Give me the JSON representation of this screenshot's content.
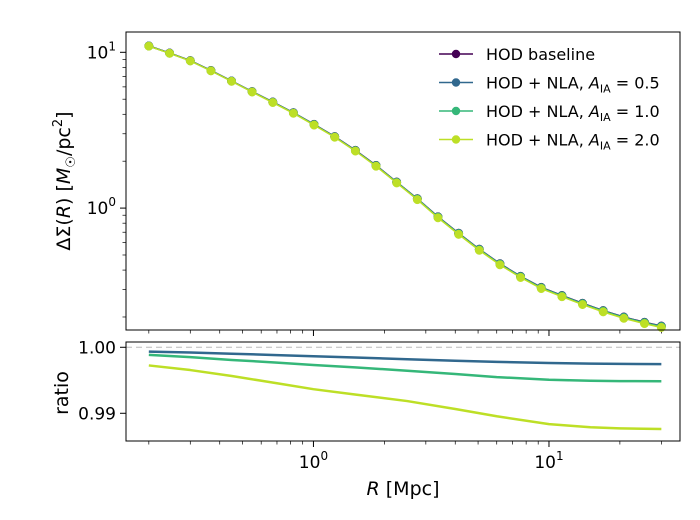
{
  "chart_data": [
    {
      "type": "line",
      "panel": "top",
      "xscale": "log",
      "yscale": "log",
      "xlim": [
        0.16,
        36
      ],
      "ylim": [
        0.165,
        13.5
      ],
      "xlabel": "",
      "ylabel": "ΔΣ(R) [M☉/pc²]",
      "yticks": [
        {
          "value": 1,
          "base": "10",
          "exp": "0"
        },
        {
          "value": 10,
          "base": "10",
          "exp": "1"
        }
      ],
      "legend_placement": "top-right",
      "x": [
        0.2,
        0.245,
        0.3,
        0.367,
        0.449,
        0.549,
        0.672,
        0.822,
        1.006,
        1.231,
        1.507,
        1.844,
        2.256,
        2.761,
        3.379,
        4.135,
        5.06,
        6.192,
        7.577,
        9.272,
        11.35,
        13.88,
        16.99,
        20.79,
        25.44,
        30.0
      ],
      "series": [
        {
          "name": "HOD baseline",
          "legend_main": "HOD baseline",
          "legend_sub": "",
          "legend_value": "",
          "color": "#440154",
          "marker": true,
          "values": [
            11.0,
            9.9,
            8.85,
            7.65,
            6.55,
            5.6,
            4.8,
            4.1,
            3.45,
            2.88,
            2.35,
            1.88,
            1.47,
            1.15,
            0.88,
            0.69,
            0.545,
            0.44,
            0.365,
            0.31,
            0.275,
            0.245,
            0.22,
            0.2,
            0.185,
            0.175
          ]
        },
        {
          "name": "HOD + NLA, A_IA = 0.5",
          "legend_main": "HOD + NLA, A",
          "legend_sub": "IA",
          "legend_value": " = 0.5",
          "color": "#31688e",
          "marker": true,
          "values": [
            10.98,
            9.88,
            8.84,
            7.64,
            6.54,
            5.59,
            4.79,
            4.09,
            3.44,
            2.872,
            2.343,
            1.875,
            1.466,
            1.147,
            0.878,
            0.688,
            0.5435,
            0.4388,
            0.364,
            0.3091,
            0.2742,
            0.2443,
            0.2194,
            0.1994,
            0.1844,
            0.1744
          ]
        },
        {
          "name": "HOD + NLA, A_IA = 1.0",
          "legend_main": "HOD + NLA, A",
          "legend_sub": "IA",
          "legend_value": " = 1.0",
          "color": "#35b779",
          "marker": true,
          "values": [
            10.97,
            9.87,
            8.82,
            7.62,
            6.53,
            5.58,
            4.78,
            4.08,
            3.43,
            2.864,
            2.336,
            1.868,
            1.461,
            1.143,
            0.874,
            0.685,
            0.541,
            0.4367,
            0.3622,
            0.3076,
            0.2728,
            0.243,
            0.2182,
            0.1983,
            0.1835,
            0.1734
          ]
        },
        {
          "name": "HOD + NLA, A_IA = 2.0",
          "legend_main": "HOD + NLA, A",
          "legend_sub": "IA",
          "legend_value": " = 2.0",
          "color": "#bddf26",
          "marker": true,
          "values": [
            10.95,
            9.85,
            8.8,
            7.6,
            6.51,
            5.56,
            4.76,
            4.06,
            3.41,
            2.85,
            2.323,
            1.856,
            1.45,
            1.133,
            0.866,
            0.678,
            0.5355,
            0.4322,
            0.3584,
            0.3043,
            0.2698,
            0.2403,
            0.2157,
            0.196,
            0.1813,
            0.1713
          ]
        }
      ]
    },
    {
      "type": "line",
      "panel": "bottom",
      "xscale": "log",
      "yscale": "linear",
      "xlim": [
        0.16,
        36
      ],
      "ylim": [
        0.9858,
        1.0008
      ],
      "xlabel": "R [Mpc]",
      "xlabel_var": "R",
      "xlabel_unit": " [Mpc]",
      "ylabel": "ratio",
      "xticks": [
        {
          "value": 1,
          "base": "10",
          "exp": "0"
        },
        {
          "value": 10,
          "base": "10",
          "exp": "1"
        }
      ],
      "yticks": [
        {
          "value": 1.0,
          "label": "1.00"
        },
        {
          "value": 0.99,
          "label": "0.99"
        }
      ],
      "reference_line": {
        "y": 1.0,
        "style": "dashed",
        "color": "#bbbbbb"
      },
      "x": [
        0.2,
        0.3,
        0.45,
        0.7,
        1.0,
        1.5,
        2.5,
        4.0,
        6.0,
        10.0,
        15.0,
        20.0,
        30.0
      ],
      "series": [
        {
          "name": "HOD + NLA, A_IA = 0.5",
          "color": "#31688e",
          "values": [
            0.99935,
            0.9992,
            0.99902,
            0.99882,
            0.99865,
            0.99845,
            0.99818,
            0.99795,
            0.99778,
            0.99762,
            0.99752,
            0.99748,
            0.99745
          ]
        },
        {
          "name": "HOD + NLA, A_IA = 1.0",
          "color": "#35b779",
          "values": [
            0.99885,
            0.9985,
            0.99808,
            0.99768,
            0.99732,
            0.99695,
            0.99645,
            0.99595,
            0.99548,
            0.99508,
            0.99492,
            0.99488,
            0.99485
          ]
        },
        {
          "name": "HOD + NLA, A_IA = 2.0",
          "color": "#bddf26",
          "values": [
            0.99725,
            0.99655,
            0.99565,
            0.99455,
            0.99365,
            0.99285,
            0.99185,
            0.99065,
            0.98955,
            0.98835,
            0.98788,
            0.98772,
            0.98762
          ]
        }
      ]
    }
  ]
}
